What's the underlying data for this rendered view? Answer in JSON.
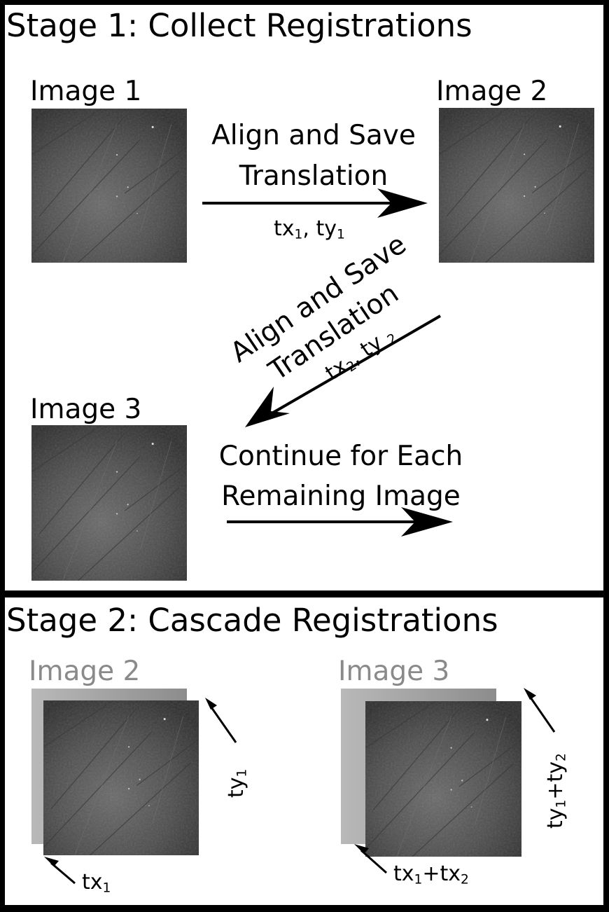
{
  "stage1": {
    "title": "Stage 1: Collect Registrations",
    "image1_label": "Image 1",
    "image2_label": "Image 2",
    "image3_label": "Image 3",
    "step1": {
      "line1": "Align and Save",
      "line2": "Translation",
      "tx": "tx",
      "tx_sub": "1",
      "sep": ", ",
      "ty": "ty",
      "ty_sub": "1"
    },
    "step2": {
      "line1": "Align and Save",
      "line2": "Translation",
      "tx": "tx",
      "tx_sub": "2",
      "sep": ", ",
      "ty": "ty ",
      "ty_sub": "2"
    },
    "step3": {
      "line1": "Continue for Each",
      "line2": "Remaining Image"
    }
  },
  "stage2": {
    "title": "Stage 2: Cascade Registrations",
    "left": {
      "label": "Image 2",
      "tx": "tx",
      "tx_sub": "1",
      "ty": "ty",
      "ty_sub": "1"
    },
    "right": {
      "label": "Image 3",
      "tx_a": "tx",
      "tx_a_sub": "1",
      "tx_plus": "+",
      "tx_b": "tx",
      "tx_b_sub": "2",
      "ty_a": "ty",
      "ty_a_sub": "1",
      "ty_plus": "+",
      "ty_b": "ty",
      "ty_b_sub": "2"
    }
  },
  "colors": {
    "background": "#000000",
    "panel": "#ffffff",
    "faded_label": "#8a8a8a",
    "arrow": "#000000"
  }
}
